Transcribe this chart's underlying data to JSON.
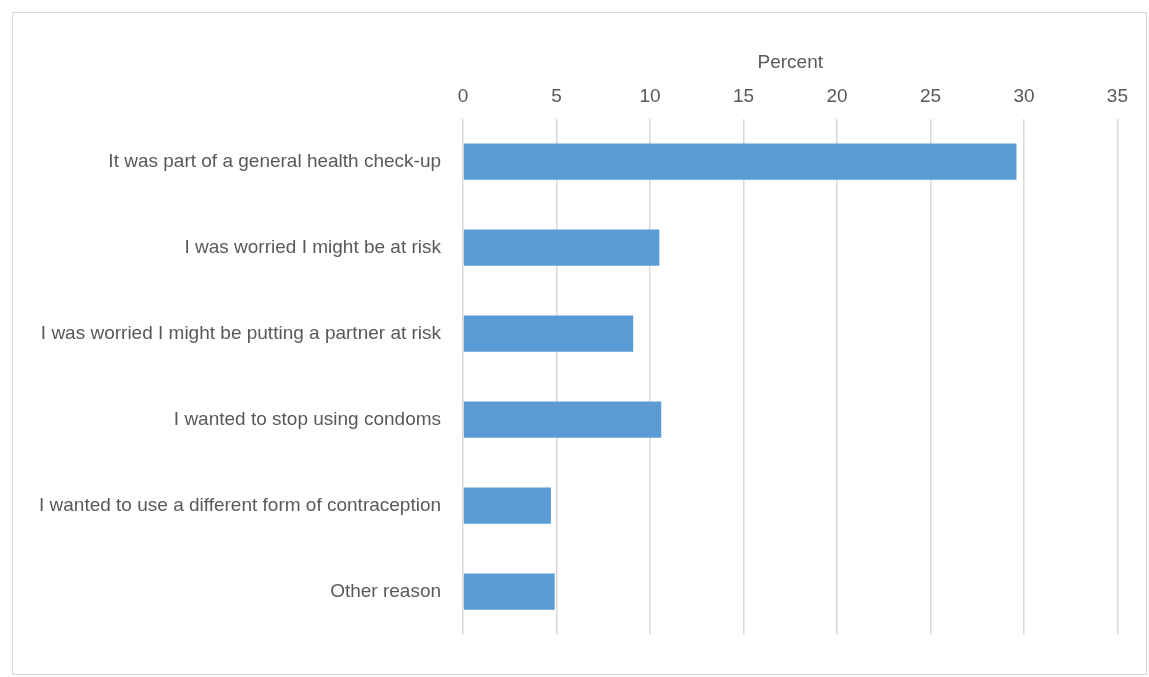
{
  "chart_data": {
    "type": "bar",
    "orientation": "horizontal",
    "xlabel": "Percent",
    "categories": [
      "It was part of a general health check-up",
      "I was worried I might be at risk",
      "I was worried I might be putting a partner at risk",
      "I wanted to stop using condoms",
      "I wanted to use a different form of contraception",
      "Other reason"
    ],
    "values": [
      29.6,
      10.5,
      9.1,
      10.6,
      4.7,
      4.9
    ],
    "color": "#5b9bd5",
    "xlim": [
      0,
      35
    ],
    "xticks": [
      0,
      5,
      10,
      15,
      20,
      25,
      30,
      35
    ],
    "grid": "x",
    "legend": false
  }
}
